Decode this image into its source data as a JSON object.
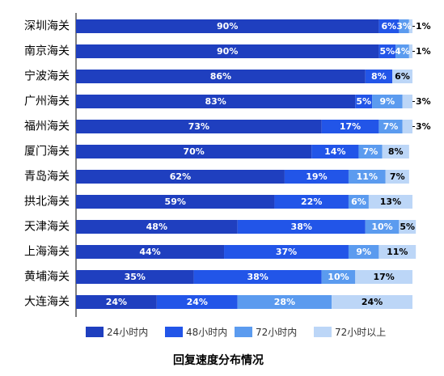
{
  "chart_data": {
    "type": "bar",
    "orientation": "horizontal",
    "stacked": true,
    "title": "回复速度分布情况",
    "categories": [
      "深圳海关",
      "南京海关",
      "宁波海关",
      "广州海关",
      "福州海关",
      "厦门海关",
      "青岛海关",
      "拱北海关",
      "天津海关",
      "上海海关",
      "黄埔海关",
      "大连海关"
    ],
    "series": [
      {
        "name": "24小时内",
        "color": "#1f3fbf",
        "values": [
          90,
          90,
          86,
          83,
          73,
          70,
          62,
          59,
          48,
          44,
          35,
          24
        ]
      },
      {
        "name": "48小时内",
        "color": "#2255e8",
        "values": [
          6,
          5,
          8,
          5,
          17,
          14,
          19,
          22,
          38,
          37,
          38,
          24
        ]
      },
      {
        "name": "72小时内",
        "color": "#5b9bef",
        "values": [
          3,
          4,
          0,
          9,
          7,
          7,
          11,
          6,
          10,
          9,
          10,
          28
        ]
      },
      {
        "name": "72小时以上",
        "color": "#bcd6f7",
        "values": [
          1,
          1,
          6,
          3,
          3,
          8,
          7,
          13,
          5,
          11,
          17,
          24
        ]
      }
    ],
    "labels": [
      [
        "90%",
        "6%",
        "3%",
        "1%"
      ],
      [
        "90%",
        "5%",
        "4%",
        "1%"
      ],
      [
        "86%",
        "8%",
        "",
        "6%"
      ],
      [
        "83%",
        "5%",
        "9%",
        "3%"
      ],
      [
        "73%",
        "17%",
        "7%",
        "3%"
      ],
      [
        "70%",
        "14%",
        "7%",
        "8%"
      ],
      [
        "62%",
        "19%",
        "11%",
        "7%"
      ],
      [
        "59%",
        "22%",
        "6%",
        "13%"
      ],
      [
        "48%",
        "38%",
        "10%",
        "5%"
      ],
      [
        "44%",
        "37%",
        "9%",
        "11%"
      ],
      [
        "35%",
        "38%",
        "10%",
        "17%"
      ],
      [
        "24%",
        "24%",
        "28%",
        "24%"
      ]
    ],
    "xlim": [
      0,
      100
    ],
    "legend": "bottom"
  }
}
